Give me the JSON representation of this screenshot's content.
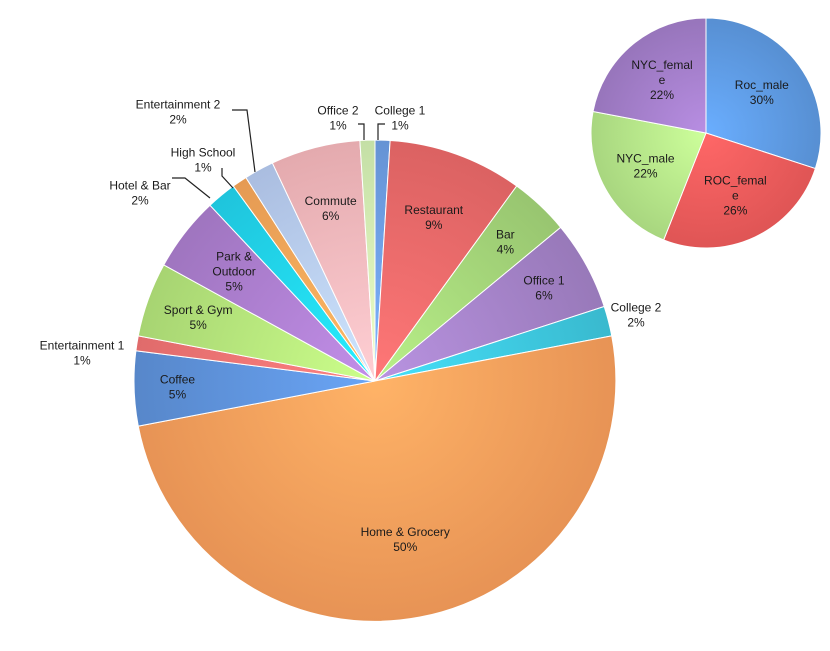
{
  "chart_data": [
    {
      "type": "pie",
      "title": "",
      "start_angle_deg": 0,
      "direction": "clockwise",
      "slices": [
        {
          "label": "College 1",
          "value": 1,
          "value_label": "1%",
          "color": "#6fa0e6",
          "label_placement": "outside-leader"
        },
        {
          "label": "Restaurant",
          "value": 9,
          "value_label": "9%",
          "color": "#ee6a6a",
          "label_placement": "inside"
        },
        {
          "label": "Bar",
          "value": 4,
          "value_label": "4%",
          "color": "#a5d67a",
          "label_placement": "inside"
        },
        {
          "label": "Office 1",
          "value": 6,
          "value_label": "6%",
          "color": "#a583c9",
          "label_placement": "inside"
        },
        {
          "label": "College 2",
          "value": 2,
          "value_label": "2%",
          "color": "#3ec9e0",
          "label_placement": "outside"
        },
        {
          "label": "Home & Grocery",
          "value": 50,
          "value_label": "50%",
          "color": "#fba05c",
          "label_placement": "inside"
        },
        {
          "label": "Coffee",
          "value": 5,
          "value_label": "5%",
          "color": "#5f93dc",
          "label_placement": "inside"
        },
        {
          "label": "Entertainment 1",
          "value": 1,
          "value_label": "1%",
          "color": "#f47474",
          "label_placement": "outside"
        },
        {
          "label": "Sport & Gym",
          "value": 5,
          "value_label": "5%",
          "color": "#b6e67c",
          "label_placement": "inside"
        },
        {
          "label": "Park & Outdoor",
          "value": 5,
          "value_label": "5%",
          "color": "#ad7fd0",
          "label_placement": "inside",
          "label_lines": [
            "Park &",
            "Outdoor"
          ]
        },
        {
          "label": "Hotel & Bar",
          "value": 2,
          "value_label": "2%",
          "color": "#22d5ef",
          "label_placement": "outside-leader"
        },
        {
          "label": "High School",
          "value": 1,
          "value_label": "1%",
          "color": "#f9a75a",
          "label_placement": "outside-leader"
        },
        {
          "label": "Entertainment 2",
          "value": 2,
          "value_label": "2%",
          "color": "#b9cdf3",
          "label_placement": "outside-leader"
        },
        {
          "label": "Commute",
          "value": 6,
          "value_label": "6%",
          "color": "#f8b9bd",
          "label_placement": "inside"
        },
        {
          "label": "Office 2",
          "value": 1,
          "value_label": "1%",
          "color": "#d5f2b4",
          "label_placement": "outside-leader"
        }
      ]
    },
    {
      "type": "pie",
      "title": "",
      "start_angle_deg": 0,
      "direction": "clockwise",
      "slices": [
        {
          "label": "Roc_male",
          "value": 30,
          "value_label": "30%",
          "color": "#5f9be4",
          "label_lines": [
            "Roc_male"
          ]
        },
        {
          "label": "ROC_female",
          "value": 26,
          "value_label": "26%",
          "color": "#f25c5c",
          "label_lines": [
            "ROC_femal",
            "e"
          ]
        },
        {
          "label": "NYC_male",
          "value": 22,
          "value_label": "22%",
          "color": "#b7e98a",
          "label_lines": [
            "NYC_male"
          ]
        },
        {
          "label": "NYC_female",
          "value": 22,
          "value_label": "22%",
          "color": "#a47fcb",
          "label_lines": [
            "NYC_femal",
            "e"
          ]
        }
      ]
    }
  ]
}
